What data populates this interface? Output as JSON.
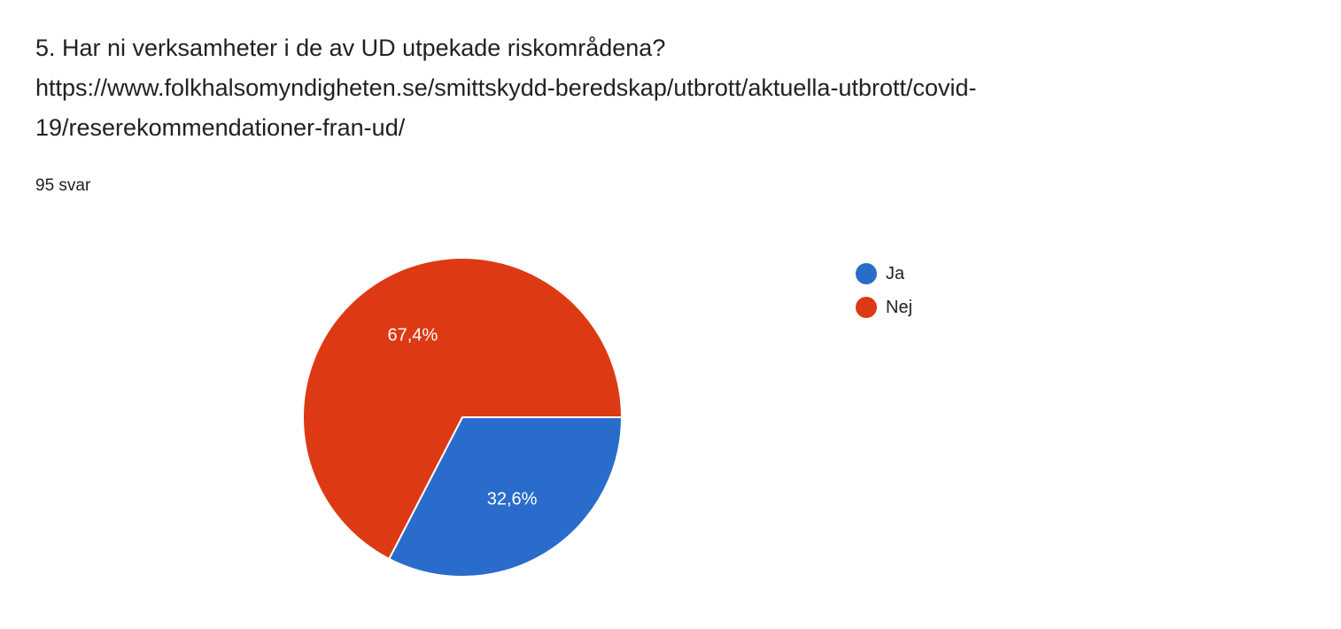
{
  "question": {
    "lines": [
      "5. Har ni verksamheter i de av UD utpekade riskområdena?",
      "https://www.folkhalsomyndigheten.se/smittskydd-beredskap/utbrott/aktuella-utbrott/covid-",
      "19/reserekommendationer-fran-ud/"
    ],
    "response_count": "95 svar"
  },
  "chart_data": {
    "type": "pie",
    "title": "",
    "start": "3 o'clock, clockwise",
    "slices": [
      {
        "label": "Ja",
        "value": 32.6,
        "value_label": "32,6%",
        "color": "#2a6ccb"
      },
      {
        "label": "Nej",
        "value": 67.4,
        "value_label": "67,4%",
        "color": "#dd3915"
      }
    ],
    "legend": {
      "placement": "right",
      "entries": [
        "Ja",
        "Nej"
      ]
    }
  }
}
